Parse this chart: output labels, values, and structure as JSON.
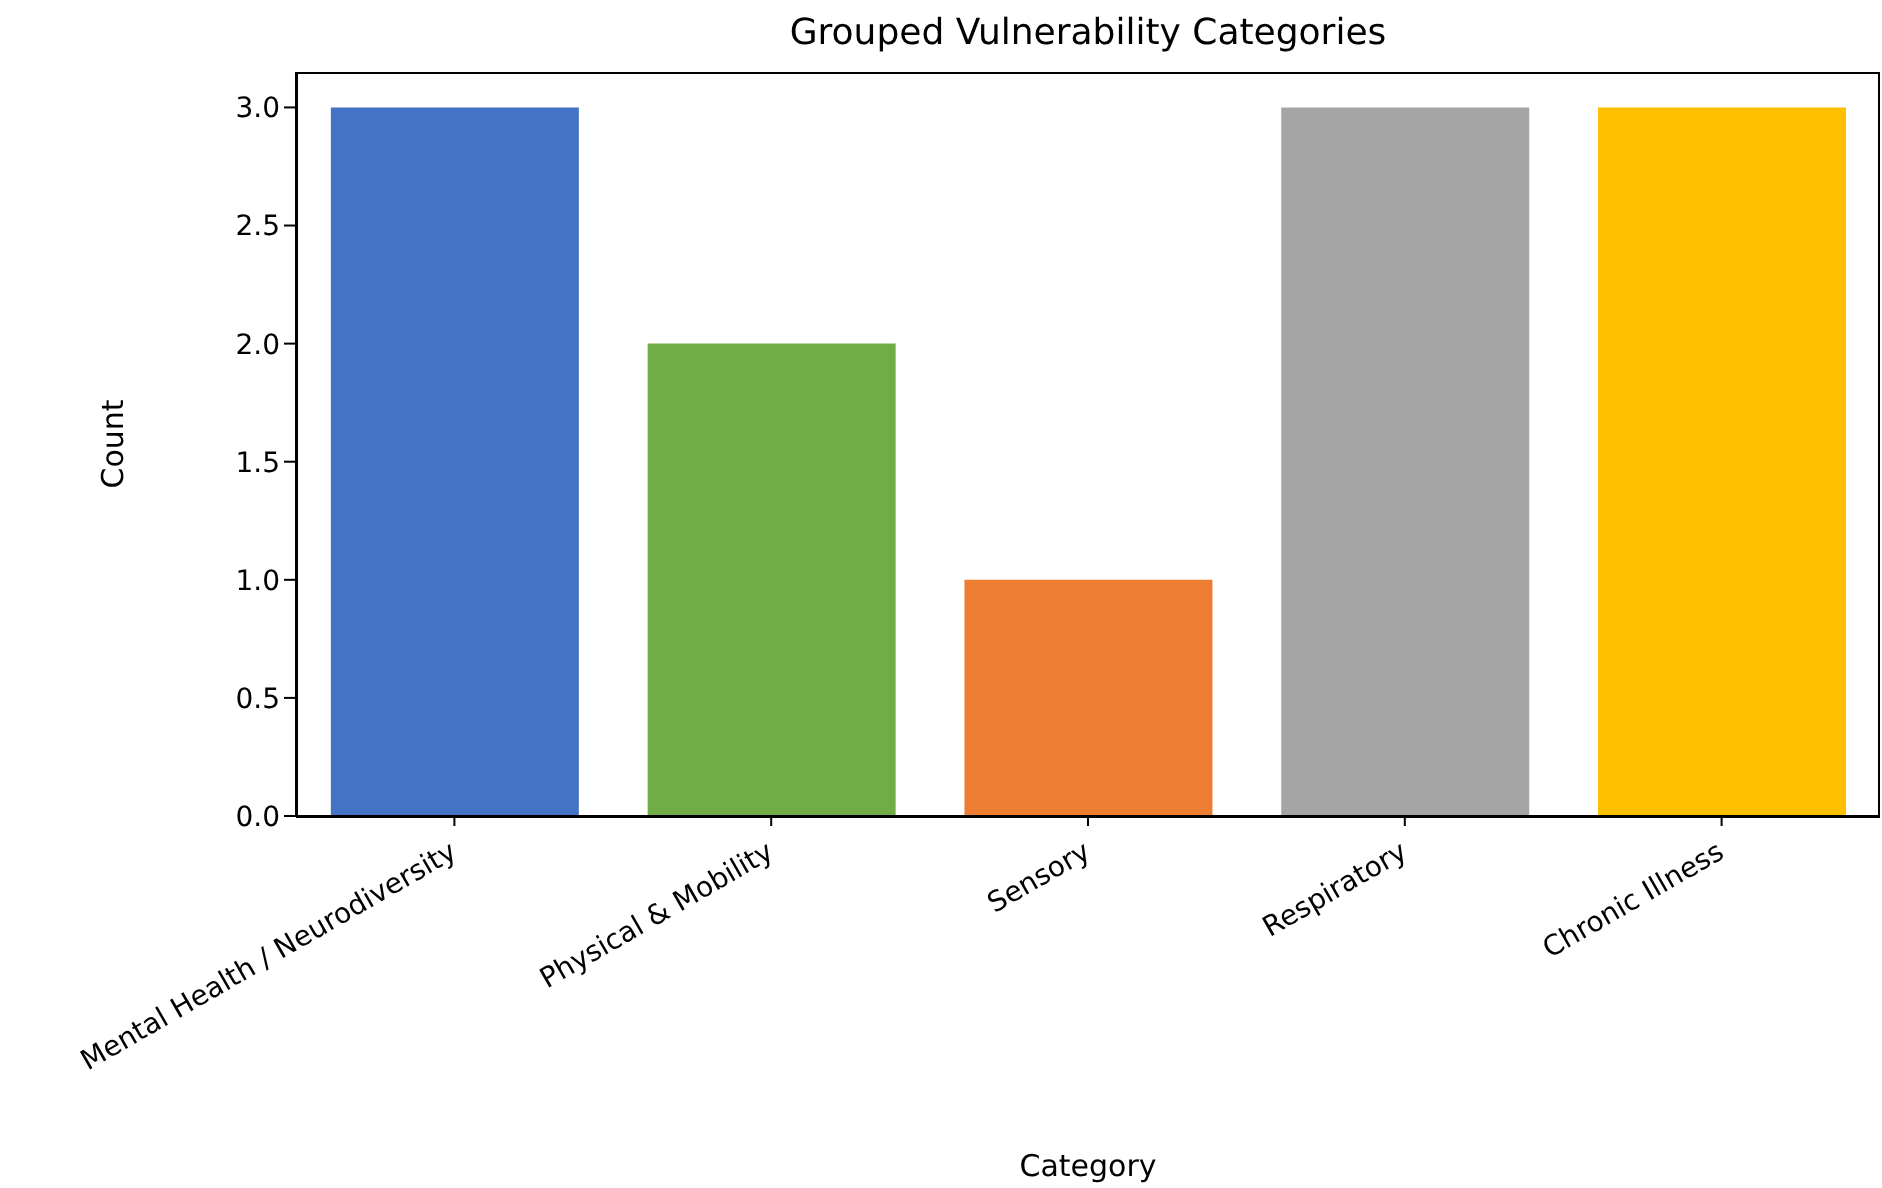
{
  "chart_data": {
    "type": "bar",
    "title": "Grouped Vulnerability Categories",
    "xlabel": "Category",
    "ylabel": "Count",
    "categories": [
      "Mental Health / Neurodiversity",
      "Physical & Mobility",
      "Sensory",
      "Respiratory",
      "Chronic Illness"
    ],
    "values": [
      3,
      2,
      1,
      3,
      3
    ],
    "colors": [
      "#4472c4",
      "#70ad47",
      "#ed7d31",
      "#a5a5a5",
      "#ffc000"
    ],
    "ylim": [
      0,
      3.15
    ],
    "yticks": [
      {
        "value": 0,
        "label": "0.0"
      },
      {
        "value": 0.5,
        "label": "0.5"
      },
      {
        "value": 1,
        "label": "1.0"
      },
      {
        "value": 1.5,
        "label": "1.5"
      },
      {
        "value": 2,
        "label": "2.0"
      },
      {
        "value": 2.5,
        "label": "2.5"
      },
      {
        "value": 3,
        "label": "3.0"
      }
    ],
    "grid": false,
    "legend": false
  }
}
